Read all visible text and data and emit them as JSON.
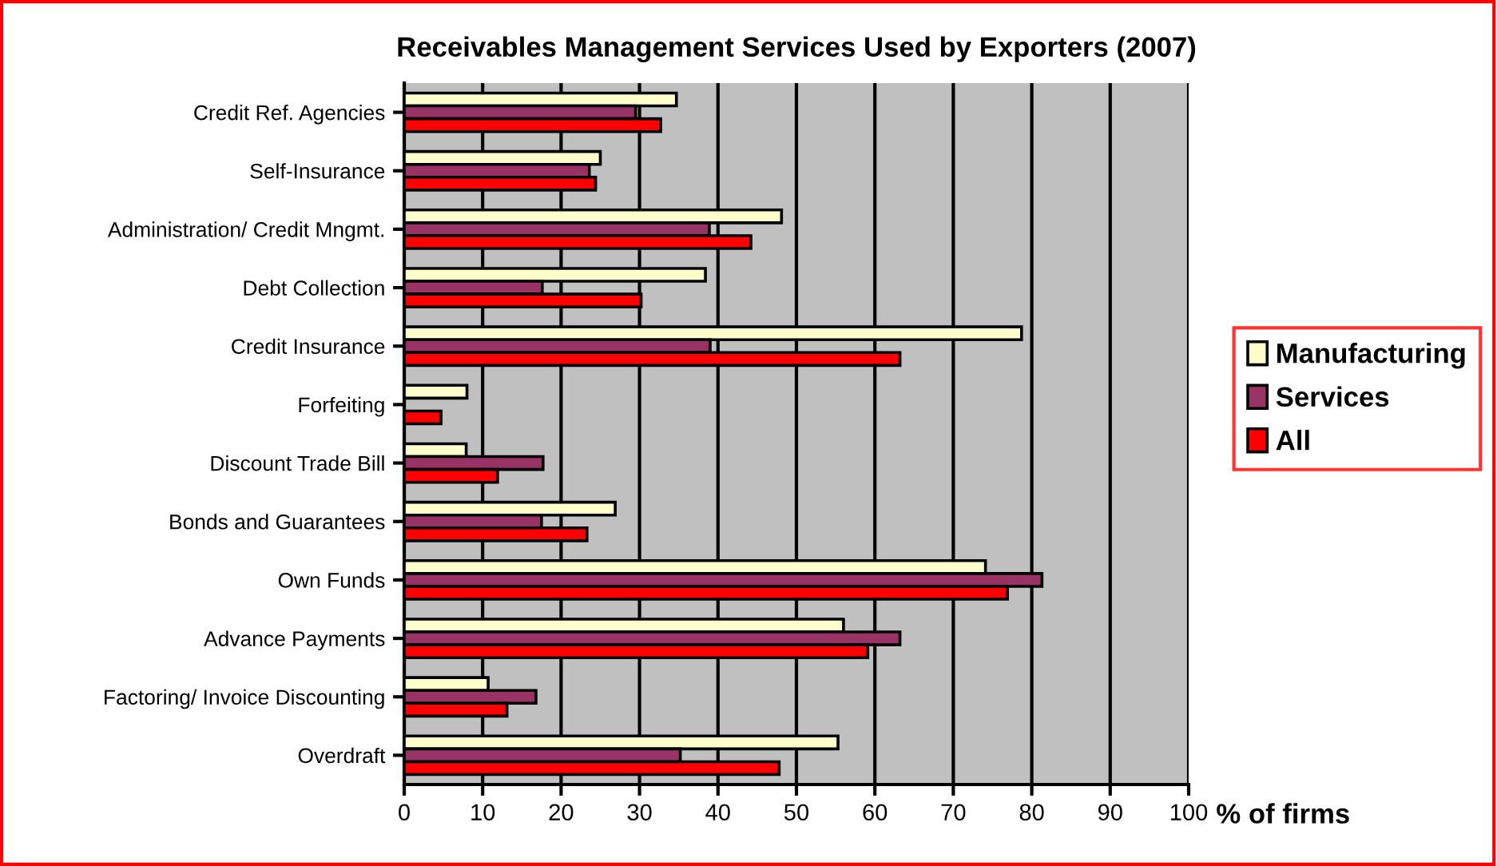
{
  "chart_data": {
    "type": "bar",
    "orientation": "horizontal",
    "title": "Receivables Management Services Used by Exporters (2007)",
    "xlabel": "% of firms",
    "categories": [
      "Credit Ref. Agencies",
      "Self-Insurance",
      "Administration/ Credit Mngmt.",
      "Debt Collection",
      "Credit Insurance",
      "Forfeiting",
      "Discount Trade Bill",
      "Bonds and Guarantees",
      "Own Funds",
      "Advance Payments",
      "Factoring/ Invoice Discounting",
      "Overdraft"
    ],
    "series": [
      {
        "name": "Manufacturing",
        "color": "#ffffcc",
        "values": [
          34.7,
          25.0,
          48.1,
          38.4,
          78.7,
          8.0,
          7.9,
          26.9,
          74.1,
          56.0,
          10.7,
          55.3
        ]
      },
      {
        "name": "Services",
        "color": "#993366",
        "values": [
          29.5,
          23.6,
          38.9,
          17.6,
          39.0,
          null,
          17.7,
          17.5,
          81.3,
          63.2,
          16.8,
          35.2
        ]
      },
      {
        "name": "All",
        "color": "#ff0000",
        "values": [
          32.7,
          24.4,
          44.2,
          30.2,
          63.2,
          4.7,
          11.9,
          23.3,
          76.9,
          59.1,
          13.1,
          47.8
        ]
      }
    ],
    "xlim": [
      0,
      100
    ],
    "xticks": [
      0,
      10,
      20,
      30,
      40,
      50,
      60,
      70,
      80,
      90,
      100
    ],
    "grid": "x",
    "legend": "right"
  }
}
